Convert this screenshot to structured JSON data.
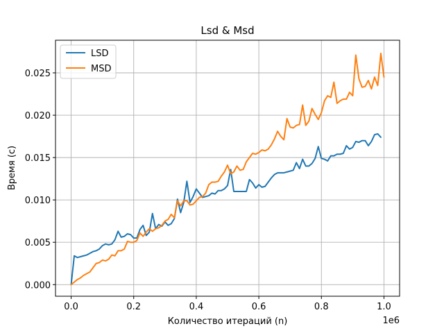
{
  "chart_data": {
    "type": "line",
    "title": "Lsd & Msd",
    "xlabel": "Количество итераций (n)",
    "ylabel": "Время (с)",
    "x_offset_text": "1e6",
    "xlim": [
      -50000,
      1050000
    ],
    "ylim": [
      -0.00137,
      0.02885
    ],
    "x_ticks": [
      0,
      200000,
      400000,
      600000,
      800000,
      1000000
    ],
    "x_tick_labels": [
      "0.0",
      "0.2",
      "0.4",
      "0.6",
      "0.8",
      "1.0"
    ],
    "y_ticks": [
      0,
      0.005,
      0.01,
      0.015,
      0.02,
      0.025
    ],
    "y_tick_labels": [
      "0.000",
      "0.005",
      "0.010",
      "0.015",
      "0.020",
      "0.025"
    ],
    "grid": true,
    "legend_position": "upper-left",
    "series": [
      {
        "name": "LSD",
        "color": "#1f77b4",
        "points": [
          [
            0,
            0
          ],
          [
            10000,
            0.0034
          ],
          [
            20000,
            0.0032
          ],
          [
            30000,
            0.0033
          ],
          [
            40000,
            0.0034
          ],
          [
            50000,
            0.0035
          ],
          [
            60000,
            0.0037
          ],
          [
            70000,
            0.0039
          ],
          [
            80000,
            0.004
          ],
          [
            90000,
            0.0042
          ],
          [
            100000,
            0.0046
          ],
          [
            110000,
            0.0048
          ],
          [
            120000,
            0.0047
          ],
          [
            130000,
            0.0048
          ],
          [
            140000,
            0.0053
          ],
          [
            150000,
            0.0063
          ],
          [
            160000,
            0.0056
          ],
          [
            170000,
            0.0057
          ],
          [
            180000,
            0.006
          ],
          [
            190000,
            0.0059
          ],
          [
            200000,
            0.0055
          ],
          [
            210000,
            0.0055
          ],
          [
            220000,
            0.0065
          ],
          [
            230000,
            0.007
          ],
          [
            240000,
            0.0058
          ],
          [
            250000,
            0.0062
          ],
          [
            260000,
            0.0084
          ],
          [
            270000,
            0.0066
          ],
          [
            280000,
            0.0071
          ],
          [
            290000,
            0.0069
          ],
          [
            300000,
            0.0074
          ],
          [
            310000,
            0.007
          ],
          [
            320000,
            0.0072
          ],
          [
            330000,
            0.0078
          ],
          [
            340000,
            0.0101
          ],
          [
            350000,
            0.0085
          ],
          [
            360000,
            0.0097
          ],
          [
            370000,
            0.0122
          ],
          [
            380000,
            0.0097
          ],
          [
            390000,
            0.0104
          ],
          [
            400000,
            0.0113
          ],
          [
            410000,
            0.0108
          ],
          [
            420000,
            0.0103
          ],
          [
            430000,
            0.0104
          ],
          [
            440000,
            0.0105
          ],
          [
            450000,
            0.0108
          ],
          [
            460000,
            0.0107
          ],
          [
            470000,
            0.0111
          ],
          [
            480000,
            0.0111
          ],
          [
            490000,
            0.0113
          ],
          [
            500000,
            0.0117
          ],
          [
            510000,
            0.0136
          ],
          [
            520000,
            0.011
          ],
          [
            530000,
            0.011
          ],
          [
            540000,
            0.011
          ],
          [
            550000,
            0.011
          ],
          [
            560000,
            0.011
          ],
          [
            570000,
            0.0124
          ],
          [
            580000,
            0.012
          ],
          [
            590000,
            0.0114
          ],
          [
            600000,
            0.0118
          ],
          [
            610000,
            0.0115
          ],
          [
            620000,
            0.0116
          ],
          [
            630000,
            0.0121
          ],
          [
            640000,
            0.0126
          ],
          [
            650000,
            0.013
          ],
          [
            660000,
            0.0132
          ],
          [
            670000,
            0.0132
          ],
          [
            680000,
            0.0132
          ],
          [
            690000,
            0.0133
          ],
          [
            700000,
            0.0134
          ],
          [
            710000,
            0.0135
          ],
          [
            720000,
            0.0144
          ],
          [
            730000,
            0.0137
          ],
          [
            740000,
            0.0148
          ],
          [
            750000,
            0.014
          ],
          [
            760000,
            0.014
          ],
          [
            770000,
            0.0143
          ],
          [
            780000,
            0.0149
          ],
          [
            790000,
            0.0163
          ],
          [
            800000,
            0.0149
          ],
          [
            810000,
            0.0148
          ],
          [
            820000,
            0.0146
          ],
          [
            830000,
            0.0152
          ],
          [
            840000,
            0.0152
          ],
          [
            850000,
            0.0154
          ],
          [
            860000,
            0.0154
          ],
          [
            870000,
            0.0155
          ],
          [
            880000,
            0.0164
          ],
          [
            890000,
            0.016
          ],
          [
            900000,
            0.0162
          ],
          [
            910000,
            0.0169
          ],
          [
            920000,
            0.0168
          ],
          [
            930000,
            0.017
          ],
          [
            940000,
            0.017
          ],
          [
            950000,
            0.0164
          ],
          [
            960000,
            0.0169
          ],
          [
            970000,
            0.0177
          ],
          [
            980000,
            0.0178
          ],
          [
            990000,
            0.0174
          ]
        ]
      },
      {
        "name": "MSD",
        "color": "#ff7f0e",
        "points": [
          [
            0,
            0
          ],
          [
            10000,
            0.0003
          ],
          [
            20000,
            0.0006
          ],
          [
            30000,
            0.0008
          ],
          [
            40000,
            0.0011
          ],
          [
            50000,
            0.0013
          ],
          [
            60000,
            0.0015
          ],
          [
            70000,
            0.002
          ],
          [
            80000,
            0.0025
          ],
          [
            90000,
            0.0026
          ],
          [
            100000,
            0.0029
          ],
          [
            110000,
            0.0028
          ],
          [
            120000,
            0.003
          ],
          [
            130000,
            0.0035
          ],
          [
            140000,
            0.0034
          ],
          [
            150000,
            0.004
          ],
          [
            160000,
            0.004
          ],
          [
            170000,
            0.0042
          ],
          [
            180000,
            0.0051
          ],
          [
            190000,
            0.005
          ],
          [
            200000,
            0.005
          ],
          [
            210000,
            0.0052
          ],
          [
            220000,
            0.0061
          ],
          [
            230000,
            0.0057
          ],
          [
            240000,
            0.0062
          ],
          [
            250000,
            0.0066
          ],
          [
            260000,
            0.0063
          ],
          [
            270000,
            0.0066
          ],
          [
            280000,
            0.0067
          ],
          [
            290000,
            0.007
          ],
          [
            300000,
            0.0075
          ],
          [
            310000,
            0.0077
          ],
          [
            320000,
            0.0083
          ],
          [
            330000,
            0.0079
          ],
          [
            340000,
            0.0099
          ],
          [
            350000,
            0.0093
          ],
          [
            360000,
            0.0099
          ],
          [
            370000,
            0.0099
          ],
          [
            380000,
            0.0094
          ],
          [
            390000,
            0.0095
          ],
          [
            400000,
            0.0099
          ],
          [
            410000,
            0.0103
          ],
          [
            420000,
            0.0104
          ],
          [
            430000,
            0.0108
          ],
          [
            440000,
            0.0118
          ],
          [
            450000,
            0.0121
          ],
          [
            460000,
            0.0121
          ],
          [
            470000,
            0.0122
          ],
          [
            480000,
            0.0128
          ],
          [
            490000,
            0.0133
          ],
          [
            500000,
            0.0141
          ],
          [
            510000,
            0.0131
          ],
          [
            520000,
            0.0133
          ],
          [
            530000,
            0.014
          ],
          [
            540000,
            0.0135
          ],
          [
            550000,
            0.0136
          ],
          [
            560000,
            0.0145
          ],
          [
            570000,
            0.015
          ],
          [
            580000,
            0.0155
          ],
          [
            590000,
            0.0154
          ],
          [
            600000,
            0.0156
          ],
          [
            610000,
            0.0159
          ],
          [
            620000,
            0.0158
          ],
          [
            630000,
            0.016
          ],
          [
            640000,
            0.0165
          ],
          [
            650000,
            0.0172
          ],
          [
            660000,
            0.0181
          ],
          [
            670000,
            0.0175
          ],
          [
            680000,
            0.0171
          ],
          [
            690000,
            0.0196
          ],
          [
            700000,
            0.0186
          ],
          [
            710000,
            0.0185
          ],
          [
            720000,
            0.0188
          ],
          [
            730000,
            0.0189
          ],
          [
            740000,
            0.0212
          ],
          [
            750000,
            0.0188
          ],
          [
            760000,
            0.0193
          ],
          [
            770000,
            0.0208
          ],
          [
            780000,
            0.0201
          ],
          [
            790000,
            0.0195
          ],
          [
            800000,
            0.0203
          ],
          [
            810000,
            0.0217
          ],
          [
            820000,
            0.0223
          ],
          [
            830000,
            0.0221
          ],
          [
            840000,
            0.0239
          ],
          [
            850000,
            0.0214
          ],
          [
            860000,
            0.0217
          ],
          [
            870000,
            0.0219
          ],
          [
            880000,
            0.0219
          ],
          [
            890000,
            0.0227
          ],
          [
            900000,
            0.0223
          ],
          [
            910000,
            0.0271
          ],
          [
            920000,
            0.0243
          ],
          [
            930000,
            0.0233
          ],
          [
            940000,
            0.0234
          ],
          [
            950000,
            0.0241
          ],
          [
            960000,
            0.0231
          ],
          [
            970000,
            0.0245
          ],
          [
            980000,
            0.0235
          ],
          [
            990000,
            0.0273
          ],
          [
            1000000,
            0.0245
          ]
        ]
      }
    ]
  }
}
